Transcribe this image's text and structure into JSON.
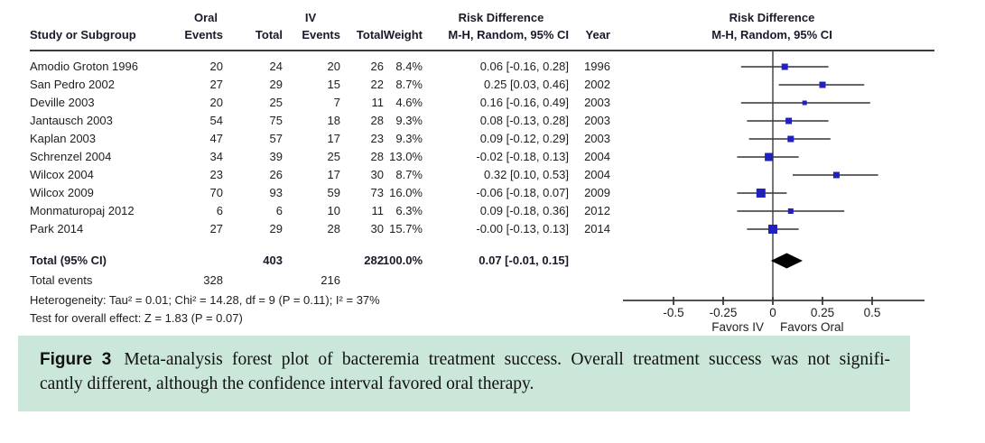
{
  "table": {
    "group_headers": {
      "oral": "Oral",
      "iv": "IV",
      "risk_difference": "Risk Difference"
    },
    "col_headers": {
      "study": "Study or Subgroup",
      "events": "Events",
      "total": "Total",
      "weight": "Weight",
      "mh_ci": "M-H, Random, 95% CI",
      "year": "Year"
    },
    "total_row_label": "Total (95% CI)",
    "total_events_label": "Total events",
    "heterogeneity": "Heterogeneity: Tau² = 0.01; Chi² = 14.28, df = 9 (P = 0.11); I² = 37%",
    "overall_effect": "Test for overall effect: Z = 1.83 (P = 0.07)"
  },
  "plot": {
    "header_line1": "Risk Difference",
    "header_line2": "M-H, Random, 95% CI",
    "favors_left": "Favors IV",
    "favors_right": "Favors Oral",
    "marker_color": "#2121bd",
    "ci_line_color": "#333333",
    "diamond_color": "#000000",
    "axis_color": "#3a3a3a",
    "zero_line_color": "#777777"
  },
  "chart_data": {
    "type": "scatter",
    "subtype": "forest-plot",
    "title": "Risk Difference, M-H, Random, 95% CI",
    "xlabel_left": "Favors IV",
    "xlabel_right": "Favors Oral",
    "xlim": [
      -0.76,
      0.77
    ],
    "x_ticks": [
      -0.5,
      -0.25,
      0,
      0.25,
      0.5
    ],
    "x_tick_labels": [
      "-0.5",
      "-0.25",
      "0",
      "0.25",
      "0.5"
    ],
    "studies": [
      {
        "study": "Amodio Groton 1996",
        "oral_events": 20,
        "oral_total": 24,
        "iv_events": 20,
        "iv_total": 26,
        "weight": "8.4%",
        "weight_pct": 8.4,
        "estimate": 0.06,
        "ci_low": -0.16,
        "ci_high": 0.28,
        "ci_text": "0.06 [-0.16, 0.28]",
        "year": "1996"
      },
      {
        "study": "San Pedro 2002",
        "oral_events": 27,
        "oral_total": 29,
        "iv_events": 15,
        "iv_total": 22,
        "weight": "8.7%",
        "weight_pct": 8.7,
        "estimate": 0.25,
        "ci_low": 0.03,
        "ci_high": 0.46,
        "ci_text": "0.25 [0.03, 0.46]",
        "year": "2002"
      },
      {
        "study": "Deville 2003",
        "oral_events": 20,
        "oral_total": 25,
        "iv_events": 7,
        "iv_total": 11,
        "weight": "4.6%",
        "weight_pct": 4.6,
        "estimate": 0.16,
        "ci_low": -0.16,
        "ci_high": 0.49,
        "ci_text": "0.16 [-0.16, 0.49]",
        "year": "2003"
      },
      {
        "study": "Jantausch 2003",
        "oral_events": 54,
        "oral_total": 75,
        "iv_events": 18,
        "iv_total": 28,
        "weight": "9.3%",
        "weight_pct": 9.3,
        "estimate": 0.08,
        "ci_low": -0.13,
        "ci_high": 0.28,
        "ci_text": "0.08 [-0.13, 0.28]",
        "year": "2003"
      },
      {
        "study": "Kaplan 2003",
        "oral_events": 47,
        "oral_total": 57,
        "iv_events": 17,
        "iv_total": 23,
        "weight": "9.3%",
        "weight_pct": 9.3,
        "estimate": 0.09,
        "ci_low": -0.12,
        "ci_high": 0.29,
        "ci_text": "0.09 [-0.12, 0.29]",
        "year": "2003"
      },
      {
        "study": "Schrenzel 2004",
        "oral_events": 34,
        "oral_total": 39,
        "iv_events": 25,
        "iv_total": 28,
        "weight": "13.0%",
        "weight_pct": 13.0,
        "estimate": -0.02,
        "ci_low": -0.18,
        "ci_high": 0.13,
        "ci_text": "-0.02 [-0.18, 0.13]",
        "year": "2004"
      },
      {
        "study": "Wilcox 2004",
        "oral_events": 23,
        "oral_total": 26,
        "iv_events": 17,
        "iv_total": 30,
        "weight": "8.7%",
        "weight_pct": 8.7,
        "estimate": 0.32,
        "ci_low": 0.1,
        "ci_high": 0.53,
        "ci_text": "0.32 [0.10, 0.53]",
        "year": "2004"
      },
      {
        "study": "Wilcox 2009",
        "oral_events": 70,
        "oral_total": 93,
        "iv_events": 59,
        "iv_total": 73,
        "weight": "16.0%",
        "weight_pct": 16.0,
        "estimate": -0.06,
        "ci_low": -0.18,
        "ci_high": 0.07,
        "ci_text": "-0.06 [-0.18, 0.07]",
        "year": "2009"
      },
      {
        "study": "Monmaturopaj 2012",
        "oral_events": 6,
        "oral_total": 6,
        "iv_events": 10,
        "iv_total": 11,
        "weight": "6.3%",
        "weight_pct": 6.3,
        "estimate": 0.09,
        "ci_low": -0.18,
        "ci_high": 0.36,
        "ci_text": "0.09 [-0.18, 0.36]",
        "year": "2012"
      },
      {
        "study": "Park 2014",
        "oral_events": 27,
        "oral_total": 29,
        "iv_events": 28,
        "iv_total": 30,
        "weight": "15.7%",
        "weight_pct": 15.7,
        "estimate": 0.0,
        "ci_low": -0.13,
        "ci_high": 0.13,
        "ci_text": "-0.00 [-0.13, 0.13]",
        "year": "2014"
      }
    ],
    "total": {
      "oral_total": 403,
      "iv_total": 282,
      "weight": "100.0%",
      "estimate": 0.07,
      "ci_low": -0.01,
      "ci_high": 0.15,
      "ci_text": "0.07 [-0.01, 0.15]"
    },
    "total_events": {
      "oral": 328,
      "iv": 216
    }
  },
  "caption": {
    "label": "Figure 3",
    "line1": "Meta-analysis forest plot of bacteremia treatment success. Overall treatment success was not signifi-",
    "line2": "cantly different, although the confidence interval favored oral therapy.",
    "bg_color": "#cbe7d9"
  }
}
